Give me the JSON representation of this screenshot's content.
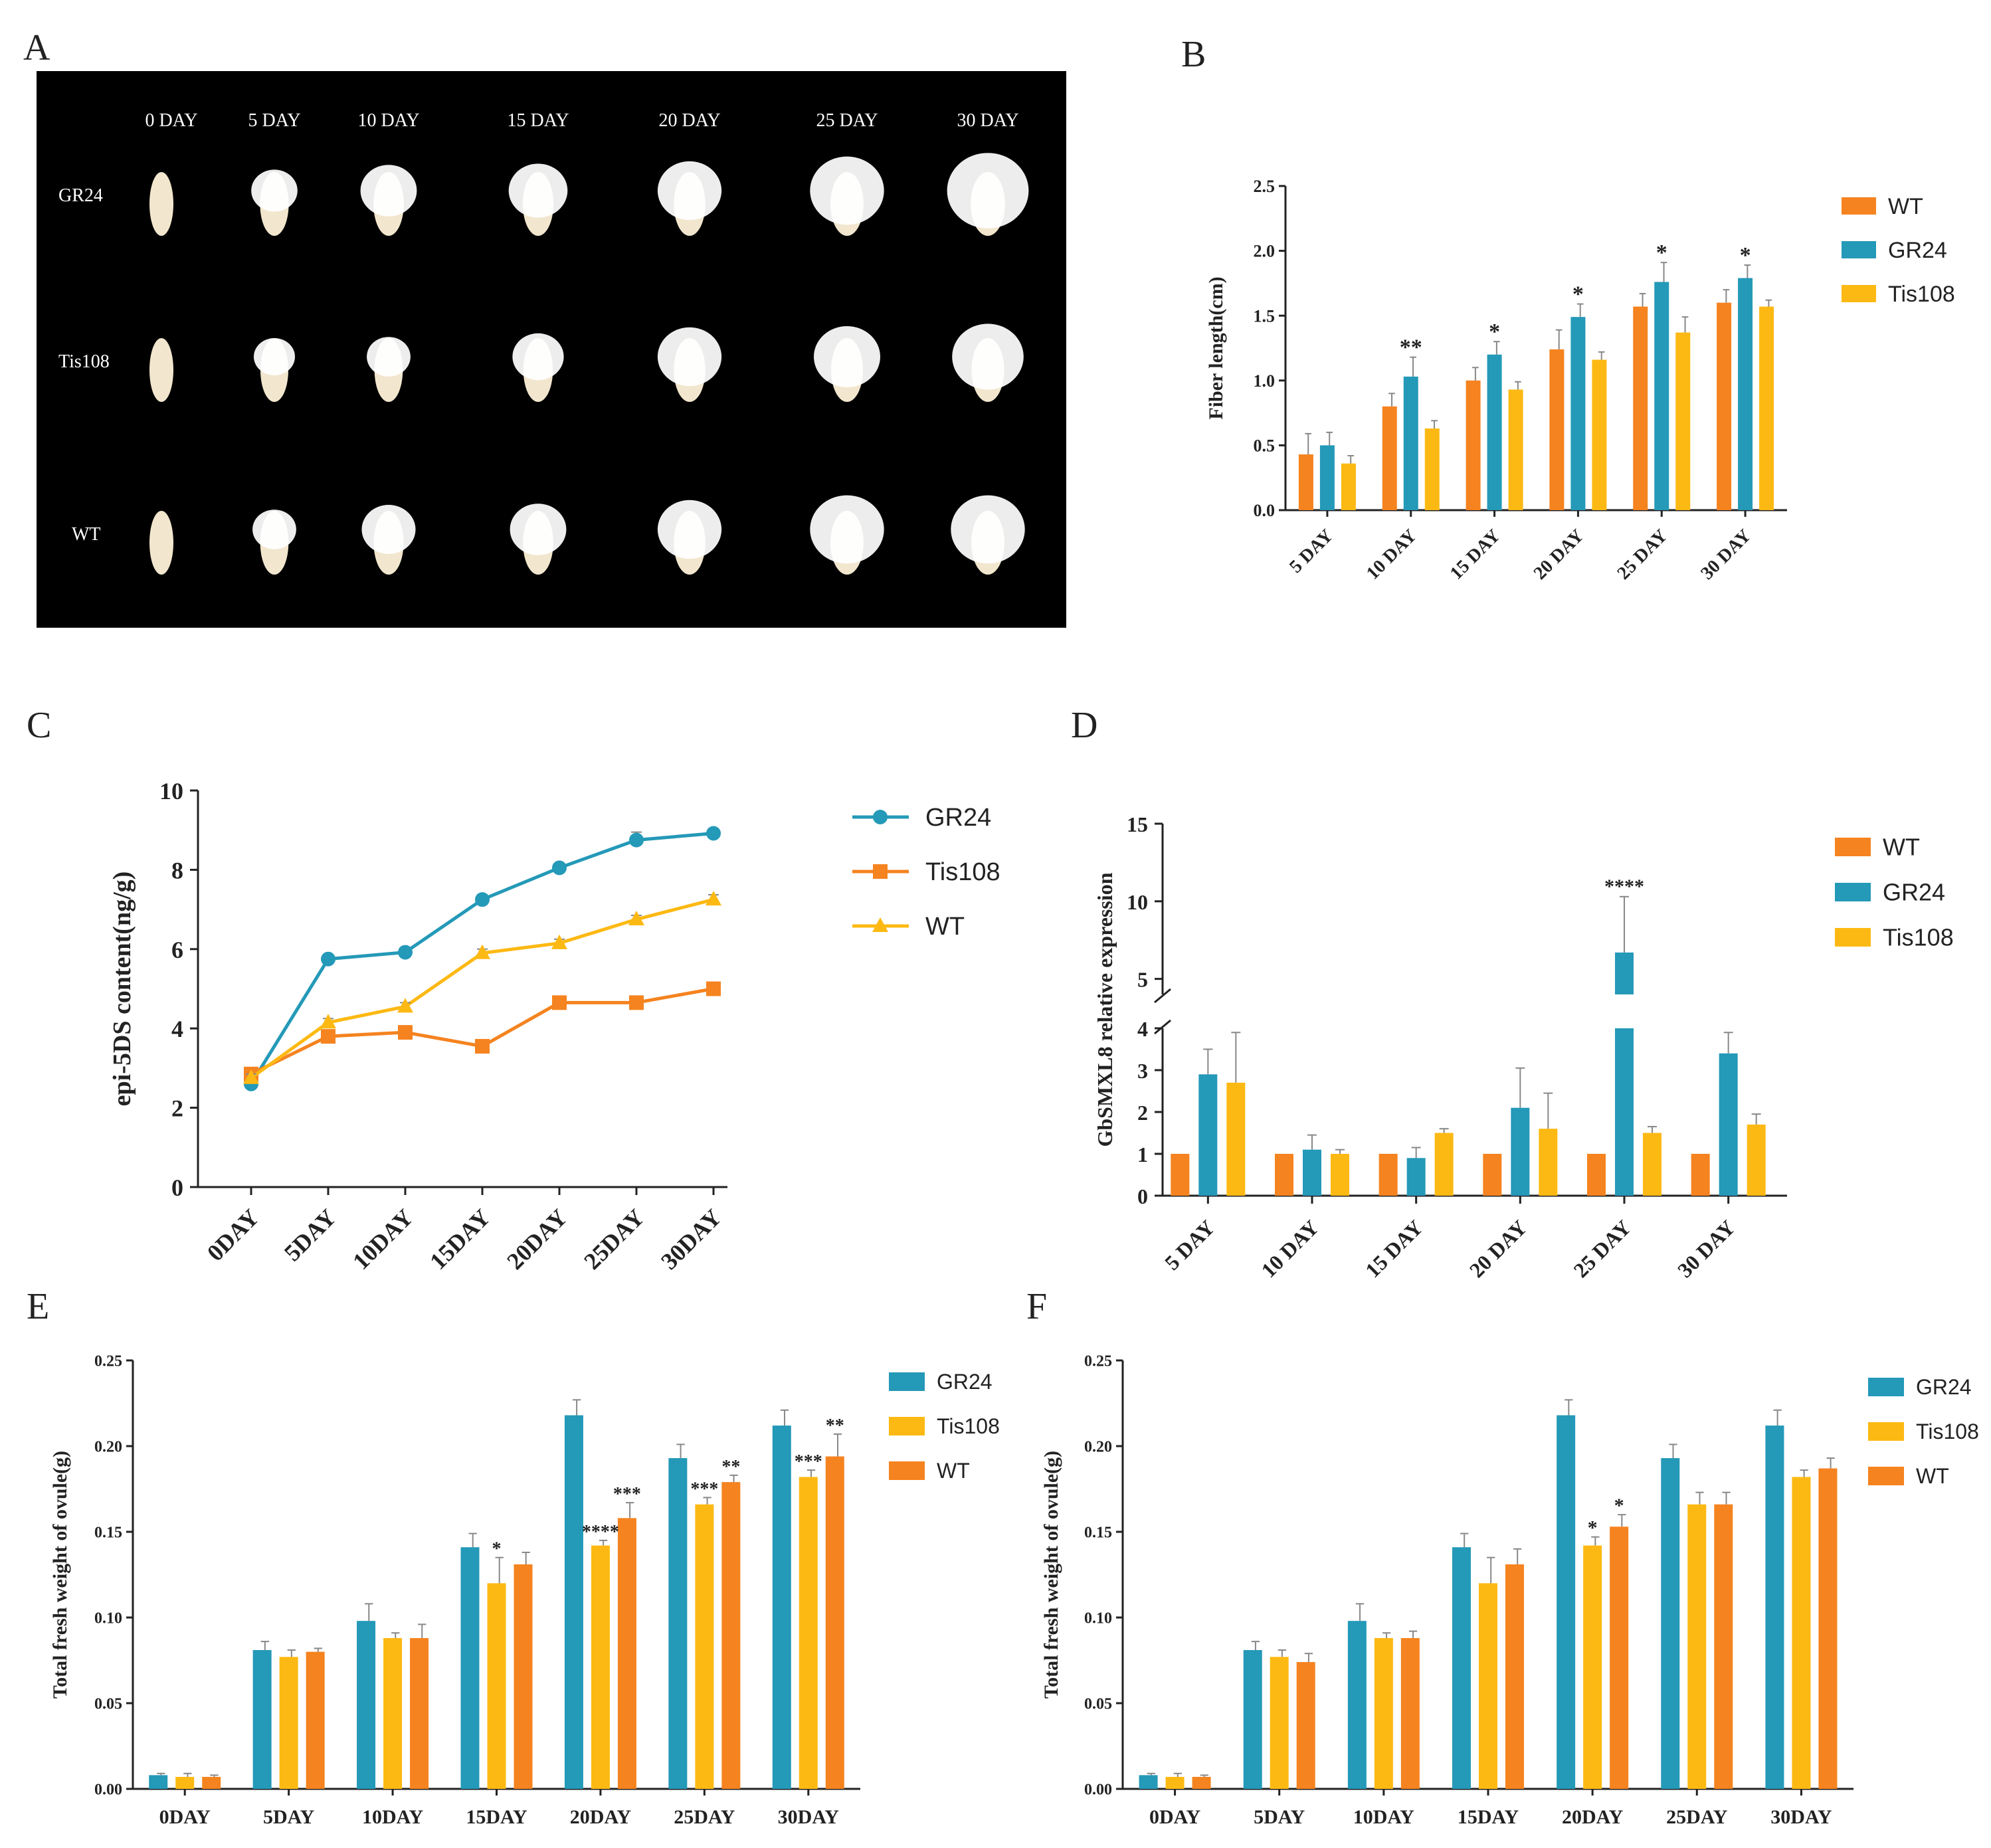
{
  "colors": {
    "WT": "#F5831F",
    "GR24": "#2499B8",
    "Tis108": "#FDB913",
    "axis": "#222222",
    "photo_bg": "#000000",
    "ovule": "#F2E6CE",
    "fiber": "#FFFFFF"
  },
  "panels": {
    "A": {
      "letter": "A",
      "day_labels": [
        "0 DAY",
        "5 DAY",
        "10 DAY",
        "15 DAY",
        "20 DAY",
        "25 DAY",
        "30 DAY"
      ],
      "row_labels": [
        "GR24",
        "Tis108",
        "WT"
      ]
    }
  },
  "chart_data": [
    {
      "id": "B",
      "letter": "B",
      "type": "bar",
      "title": "",
      "xlabel": "",
      "ylabel": "Fiber length(cm)",
      "ylim": [
        0,
        2.5
      ],
      "yticks": [
        "0.0",
        "0.5",
        "1.0",
        "1.5",
        "2.0",
        "2.5"
      ],
      "categories": [
        "5 DAY",
        "10 DAY",
        "15 DAY",
        "20 DAY",
        "25 DAY",
        "30 DAY"
      ],
      "legend": [
        "WT",
        "GR24",
        "Tis108"
      ],
      "legend_position": "right",
      "series": [
        {
          "name": "WT",
          "color": "#F5831F",
          "values": [
            0.43,
            0.8,
            1.0,
            1.24,
            1.57,
            1.6
          ],
          "errors": [
            0.16,
            0.1,
            0.1,
            0.15,
            0.1,
            0.1
          ]
        },
        {
          "name": "GR24",
          "color": "#2499B8",
          "values": [
            0.5,
            1.03,
            1.2,
            1.49,
            1.76,
            1.79
          ],
          "errors": [
            0.1,
            0.15,
            0.1,
            0.1,
            0.15,
            0.1
          ]
        },
        {
          "name": "Tis108",
          "color": "#FDB913",
          "values": [
            0.36,
            0.63,
            0.93,
            1.16,
            1.37,
            1.57
          ],
          "errors": [
            0.06,
            0.06,
            0.06,
            0.06,
            0.12,
            0.05
          ]
        }
      ],
      "annotations": [
        {
          "series": "GR24",
          "category": "10 DAY",
          "text": "**"
        },
        {
          "series": "GR24",
          "category": "15 DAY",
          "text": "*"
        },
        {
          "series": "GR24",
          "category": "20 DAY",
          "text": "*"
        },
        {
          "series": "GR24",
          "category": "25 DAY",
          "text": "*"
        },
        {
          "series": "GR24",
          "category": "30 DAY",
          "text": "*"
        }
      ]
    },
    {
      "id": "C",
      "letter": "C",
      "type": "line",
      "title": "",
      "xlabel": "",
      "ylabel": "epi-5DS content(ng/g)",
      "ylim": [
        0,
        10
      ],
      "yticks": [
        "0",
        "2",
        "4",
        "6",
        "8",
        "10"
      ],
      "categories": [
        "0DAY",
        "5DAY",
        "10DAY",
        "15DAY",
        "20DAY",
        "25DAY",
        "30DAY"
      ],
      "legend": [
        "GR24",
        "Tis108",
        "WT"
      ],
      "legend_position": "right",
      "series": [
        {
          "name": "GR24",
          "color": "#2499B8",
          "marker": "circle",
          "values": [
            2.6,
            5.75,
            5.92,
            7.25,
            8.05,
            8.75,
            8.92
          ],
          "errors": [
            0.1,
            0.1,
            0.1,
            0.12,
            0.1,
            0.2,
            0.1
          ]
        },
        {
          "name": "Tis108",
          "color": "#F5831F",
          "marker": "square",
          "values": [
            2.85,
            3.8,
            3.9,
            3.55,
            4.65,
            4.65,
            5.0
          ],
          "errors": [
            0.1,
            0.1,
            0.1,
            0.1,
            0.1,
            0.1,
            0.1
          ]
        },
        {
          "name": "WT",
          "color": "#FDB913",
          "marker": "triangle",
          "values": [
            2.75,
            4.15,
            4.55,
            5.9,
            6.15,
            6.75,
            7.25
          ],
          "errors": [
            0.1,
            0.1,
            0.1,
            0.1,
            0.1,
            0.1,
            0.12
          ]
        }
      ]
    },
    {
      "id": "D",
      "letter": "D",
      "type": "bar",
      "title": "",
      "xlabel": "",
      "ylabel": "GbSMXL8 relative expression",
      "axis_break": {
        "lower": [
          0,
          4
        ],
        "upper": [
          4,
          15
        ]
      },
      "yticks_lower": [
        "0",
        "1",
        "2",
        "3",
        "4"
      ],
      "yticks_upper": [
        "5",
        "10",
        "15"
      ],
      "categories": [
        "5 DAY",
        "10 DAY",
        "15 DAY",
        "20 DAY",
        "25 DAY",
        "30 DAY"
      ],
      "legend": [
        "WT",
        "GR24",
        "Tis108"
      ],
      "legend_position": "right",
      "series": [
        {
          "name": "WT",
          "color": "#F5831F",
          "values": [
            1.0,
            1.0,
            1.0,
            1.0,
            1.0,
            1.0
          ],
          "errors": [
            0,
            0,
            0,
            0,
            0,
            0
          ]
        },
        {
          "name": "GR24",
          "color": "#2499B8",
          "values": [
            2.9,
            1.1,
            0.9,
            2.1,
            6.7,
            3.4
          ],
          "errors": [
            0.6,
            0.35,
            0.25,
            0.95,
            3.6,
            0.5
          ]
        },
        {
          "name": "Tis108",
          "color": "#FDB913",
          "values": [
            2.7,
            1.0,
            1.5,
            1.6,
            1.5,
            1.7
          ],
          "errors": [
            1.2,
            0.1,
            0.1,
            0.85,
            0.15,
            0.25
          ]
        }
      ],
      "annotations": [
        {
          "series": "GR24",
          "category": "25 DAY",
          "text": "****"
        }
      ]
    },
    {
      "id": "E",
      "letter": "E",
      "type": "bar",
      "title": "",
      "xlabel": "",
      "ylabel": "Total fresh weight of ovule(g)",
      "ylim": [
        0,
        0.25
      ],
      "yticks": [
        "0.00",
        "0.05",
        "0.10",
        "0.15",
        "0.20",
        "0.25"
      ],
      "categories": [
        "0DAY",
        "5DAY",
        "10DAY",
        "15DAY",
        "20DAY",
        "25DAY",
        "30DAY"
      ],
      "legend": [
        "GR24",
        "Tis108",
        "WT"
      ],
      "legend_position": "right",
      "series": [
        {
          "name": "GR24",
          "color": "#2499B8",
          "values": [
            0.008,
            0.081,
            0.098,
            0.141,
            0.218,
            0.193,
            0.212
          ],
          "errors": [
            0.001,
            0.005,
            0.01,
            0.008,
            0.009,
            0.008,
            0.009
          ]
        },
        {
          "name": "Tis108",
          "color": "#FDB913",
          "values": [
            0.007,
            0.077,
            0.088,
            0.12,
            0.142,
            0.166,
            0.182
          ],
          "errors": [
            0.002,
            0.004,
            0.003,
            0.015,
            0.003,
            0.004,
            0.004
          ]
        },
        {
          "name": "WT",
          "color": "#F5831F",
          "values": [
            0.007,
            0.08,
            0.088,
            0.131,
            0.158,
            0.179,
            0.194
          ],
          "errors": [
            0.001,
            0.002,
            0.008,
            0.007,
            0.009,
            0.004,
            0.013
          ]
        }
      ],
      "annotations": [
        {
          "series": "Tis108",
          "category": "15DAY",
          "text": "*"
        },
        {
          "series": "Tis108",
          "category": "20DAY",
          "text": "****"
        },
        {
          "series": "WT",
          "category": "20DAY",
          "text": "***"
        },
        {
          "series": "Tis108",
          "category": "25DAY",
          "text": "***"
        },
        {
          "series": "WT",
          "category": "25DAY",
          "text": "**"
        },
        {
          "series": "Tis108",
          "category": "30DAY",
          "text": "***"
        },
        {
          "series": "WT",
          "category": "30DAY",
          "text": "**"
        }
      ]
    },
    {
      "id": "F",
      "letter": "F",
      "type": "bar",
      "title": "",
      "xlabel": "",
      "ylabel": "Total fresh weight of ovule(g)",
      "ylim": [
        0,
        0.25
      ],
      "yticks": [
        "0.00",
        "0.05",
        "0.10",
        "0.15",
        "0.20",
        "0.25"
      ],
      "categories": [
        "0DAY",
        "5DAY",
        "10DAY",
        "15DAY",
        "20DAY",
        "25DAY",
        "30DAY"
      ],
      "legend": [
        "GR24",
        "Tis108",
        "WT"
      ],
      "legend_position": "right",
      "series": [
        {
          "name": "GR24",
          "color": "#2499B8",
          "values": [
            0.008,
            0.081,
            0.098,
            0.141,
            0.218,
            0.193,
            0.212
          ],
          "errors": [
            0.001,
            0.005,
            0.01,
            0.008,
            0.009,
            0.008,
            0.009
          ]
        },
        {
          "name": "Tis108",
          "color": "#FDB913",
          "values": [
            0.007,
            0.077,
            0.088,
            0.12,
            0.142,
            0.166,
            0.182
          ],
          "errors": [
            0.002,
            0.004,
            0.003,
            0.015,
            0.005,
            0.007,
            0.004
          ]
        },
        {
          "name": "WT",
          "color": "#F5831F",
          "values": [
            0.007,
            0.074,
            0.088,
            0.131,
            0.153,
            0.166,
            0.187
          ],
          "errors": [
            0.001,
            0.005,
            0.004,
            0.009,
            0.007,
            0.007,
            0.006
          ]
        }
      ],
      "annotations": [
        {
          "series": "Tis108",
          "category": "20DAY",
          "text": "*"
        },
        {
          "series": "WT",
          "category": "20DAY",
          "text": "*"
        }
      ]
    }
  ]
}
